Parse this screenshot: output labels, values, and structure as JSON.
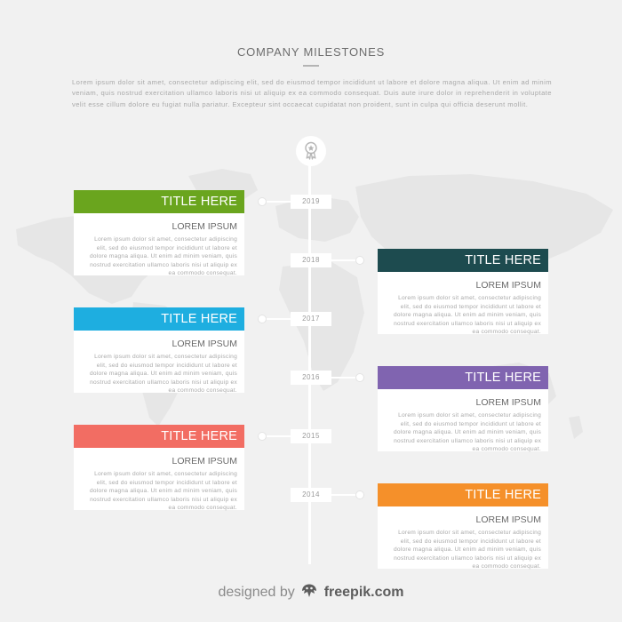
{
  "header": {
    "title": "COMPANY MILESTONES",
    "intro": "Lorem ipsum dolor sit amet, consectetur adipiscing elit, sed do eiusmod tempor incididunt ut labore et dolore magna aliqua. Ut enim ad minim veniam, quis nostrud exercitation ullamco laboris nisi ut aliquip ex ea commodo consequat. Duis aute irure dolor in reprehenderit in voluptate velit esse cillum dolore eu fugiat nulla pariatur. Excepteur sint occaecat cupidatat non proident, sunt in culpa qui officia deserunt mollit."
  },
  "timeline": {
    "badge_icon": "award-ribbon-icon",
    "years": [
      "2019",
      "2018",
      "2017",
      "2016",
      "2015",
      "2014"
    ],
    "milestones": [
      {
        "title": "TITLE HERE",
        "subtitle": "LOREM IPSUM",
        "text": "Lorem ipsum dolor sit amet, consectetur adipiscing elit, sed do eiusmod tempor incididunt ut labore et dolore magna aliqua. Ut enim ad minim veniam, quis nostrud exercitation ullamco laboris nisi ut aliquip ex ea commodo consequat.",
        "color": "#6aa51e"
      },
      {
        "title": "TITLE HERE",
        "subtitle": "LOREM IPSUM",
        "text": "Lorem ipsum dolor sit amet, consectetur adipiscing elit, sed do eiusmod tempor incididunt ut labore et dolore magna aliqua. Ut enim ad minim veniam, quis nostrud exercitation ullamco laboris nisi ut aliquip ex ea commodo consequat.",
        "color": "#1d4b4f"
      },
      {
        "title": "TITLE HERE",
        "subtitle": "LOREM IPSUM",
        "text": "Lorem ipsum dolor sit amet, consectetur adipiscing elit, sed do eiusmod tempor incididunt ut labore et dolore magna aliqua. Ut enim ad minim veniam, quis nostrud exercitation ullamco laboris nisi ut aliquip ex ea commodo consequat.",
        "color": "#1eaee0"
      },
      {
        "title": "TITLE HERE",
        "subtitle": "LOREM IPSUM",
        "text": "Lorem ipsum dolor sit amet, consectetur adipiscing elit, sed do eiusmod tempor incididunt ut labore et dolore magna aliqua. Ut enim ad minim veniam, quis nostrud exercitation ullamco laboris nisi ut aliquip ex ea commodo consequat.",
        "color": "#8064b0"
      },
      {
        "title": "TITLE HERE",
        "subtitle": "LOREM IPSUM",
        "text": "Lorem ipsum dolor sit amet, consectetur adipiscing elit, sed do eiusmod tempor incididunt ut labore et dolore magna aliqua. Ut enim ad minim veniam, quis nostrud exercitation ullamco laboris nisi ut aliquip ex ea commodo consequat.",
        "color": "#f26d63"
      },
      {
        "title": "TITLE HERE",
        "subtitle": "LOREM IPSUM",
        "text": "Lorem ipsum dolor sit amet, consectetur adipiscing elit, sed do eiusmod tempor incididunt ut labore et dolore magna aliqua. Ut enim ad minim veniam, quis nostrud exercitation ullamco laboris nisi ut aliquip ex ea commodo consequat.",
        "color": "#f5902a"
      }
    ]
  },
  "footer": {
    "prefix": "designed by",
    "brand": "freepik.com",
    "logo_icon": "freepik-logo-icon"
  }
}
